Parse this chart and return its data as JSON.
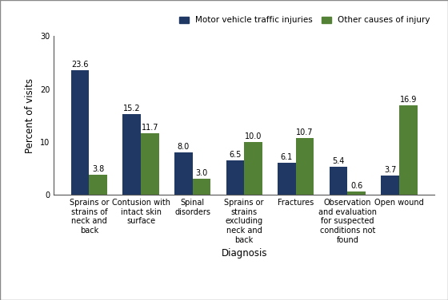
{
  "categories": [
    "Sprains or\nstrains of\nneck and\nback",
    "Contusion with\nintact skin\nsurface",
    "Spinal\ndisorders",
    "Sprains or\nstrains\nexcluding\nneck and\nback",
    "Fractures",
    "Observation\nand evaluation\nfor suspected\nconditions not\nfound",
    "Open wound"
  ],
  "motor_vehicle": [
    23.6,
    15.2,
    8.0,
    6.5,
    6.1,
    5.4,
    3.7
  ],
  "other_causes": [
    3.8,
    11.7,
    3.0,
    10.0,
    10.7,
    0.6,
    16.9
  ],
  "motor_vehicle_color": "#1f3864",
  "other_causes_color": "#538135",
  "xlabel": "Diagnosis",
  "ylabel": "Percent of visits",
  "ylim": [
    0,
    30
  ],
  "yticks": [
    0,
    10,
    20,
    30
  ],
  "legend_motor": "Motor vehicle traffic injuries",
  "legend_other": "Other causes of injury",
  "bar_width": 0.35,
  "label_fontsize": 7.0,
  "axis_fontsize": 8.5,
  "legend_fontsize": 7.5,
  "tick_label_fontsize": 7.0
}
